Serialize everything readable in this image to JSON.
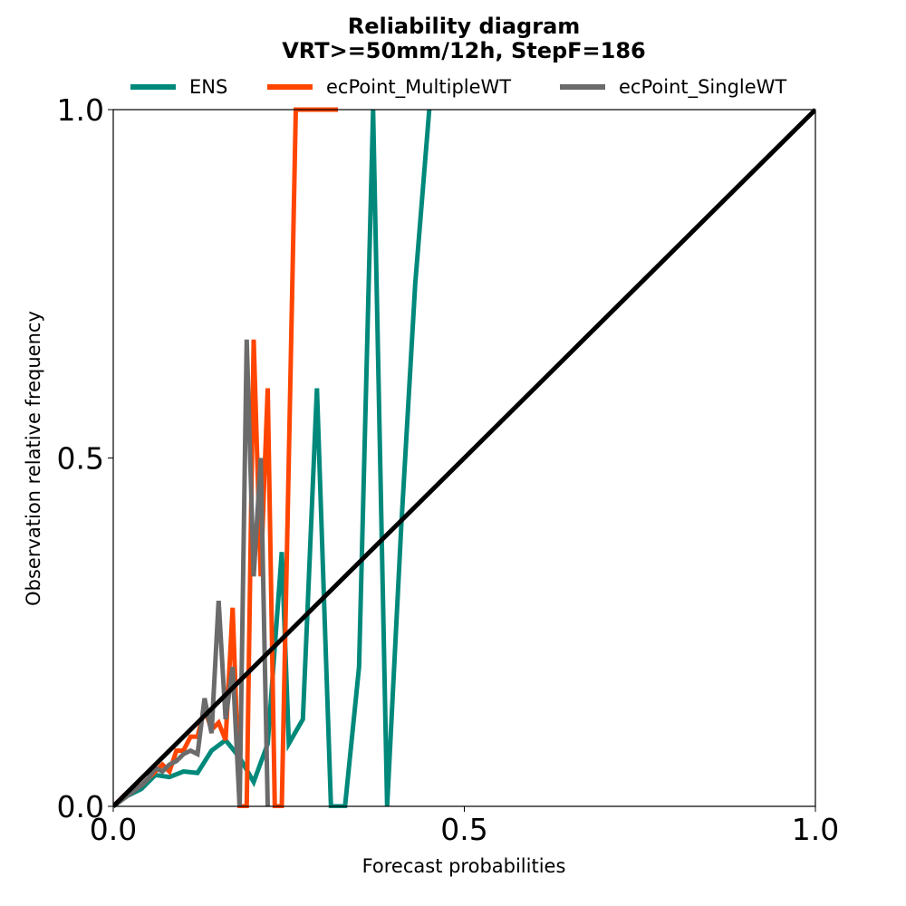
{
  "chart_data": {
    "type": "line",
    "title": "Reliability diagram",
    "subtitle": "VRT>=50mm/12h, StepF=186",
    "xlabel": "Forecast probabilities",
    "ylabel": "Observation relative frequency",
    "xlim": [
      0,
      1
    ],
    "ylim": [
      0,
      1
    ],
    "xticks": [
      "0.0",
      "0.5",
      "1.0"
    ],
    "yticks": [
      "0.0",
      "0.5",
      "1.0"
    ],
    "legend_position": "top",
    "grid": false,
    "series": [
      {
        "name": "ENS",
        "color": "#00897b",
        "x": [
          0,
          0.02,
          0.04,
          0.06,
          0.08,
          0.1,
          0.12,
          0.14,
          0.16,
          0.18,
          0.2,
          0.22,
          0.24,
          0.25,
          0.27,
          0.29,
          0.31,
          0.33,
          0.35,
          0.37,
          0.39,
          0.41,
          0.43,
          0.45
        ],
        "y": [
          0.0,
          0.015,
          0.025,
          0.045,
          0.042,
          0.05,
          0.048,
          0.08,
          0.095,
          0.07,
          0.035,
          0.09,
          0.365,
          0.09,
          0.125,
          0.6,
          0.0,
          0.0,
          0.2,
          1.0,
          0.0,
          0.4,
          0.75,
          1.0
        ]
      },
      {
        "name": "ecPoint_MultipleWT",
        "color": "#ff4500",
        "x": [
          0,
          0.02,
          0.04,
          0.06,
          0.07,
          0.08,
          0.09,
          0.1,
          0.11,
          0.12,
          0.13,
          0.14,
          0.15,
          0.16,
          0.17,
          0.18,
          0.19,
          0.2,
          0.21,
          0.22,
          0.23,
          0.24,
          0.25,
          0.26,
          0.27,
          0.29,
          0.32
        ],
        "y": [
          0.0,
          0.02,
          0.03,
          0.05,
          0.06,
          0.05,
          0.08,
          0.08,
          0.1,
          0.1,
          0.14,
          0.11,
          0.12,
          0.095,
          0.285,
          0.0,
          0.0,
          0.67,
          0.33,
          0.6,
          0.0,
          0.0,
          0.5,
          1.0,
          1.0,
          1.0,
          1.0
        ]
      },
      {
        "name": "ecPoint_SingleWT",
        "color": "#6b6b6b",
        "x": [
          0,
          0.02,
          0.04,
          0.05,
          0.06,
          0.07,
          0.08,
          0.09,
          0.1,
          0.11,
          0.12,
          0.13,
          0.14,
          0.15,
          0.16,
          0.17,
          0.18,
          0.19,
          0.2,
          0.21,
          0.22
        ],
        "y": [
          0.0,
          0.015,
          0.03,
          0.04,
          0.055,
          0.05,
          0.06,
          0.065,
          0.075,
          0.08,
          0.075,
          0.155,
          0.105,
          0.295,
          0.125,
          0.2,
          0.0,
          0.67,
          0.33,
          0.5,
          0.0
        ]
      },
      {
        "name": "",
        "color": "#000000",
        "x": [
          0,
          1
        ],
        "y": [
          0,
          1
        ]
      }
    ]
  }
}
